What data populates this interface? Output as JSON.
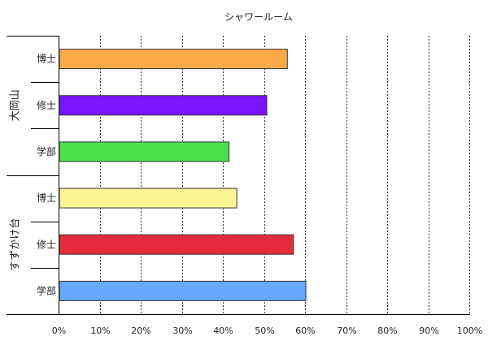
{
  "chart_data": {
    "type": "bar",
    "orientation": "horizontal",
    "title": "シャワールーム",
    "xlim": [
      0,
      100
    ],
    "x_ticks": [
      "0%",
      "10%",
      "20%",
      "30%",
      "40%",
      "50%",
      "60%",
      "70%",
      "80%",
      "90%",
      "100%"
    ],
    "x_grid": true,
    "groups": [
      {
        "name": "大岡山",
        "categories": [
          {
            "label": "博士",
            "value": 55.5,
            "color": "#FCA94A"
          },
          {
            "label": "修士",
            "value": 50.5,
            "color": "#7A14FA"
          },
          {
            "label": "学部",
            "value": 41.3,
            "color": "#4DE04D"
          }
        ]
      },
      {
        "name": "すずかけ台",
        "categories": [
          {
            "label": "博士",
            "value": 43.2,
            "color": "#FDF595"
          },
          {
            "label": "修士",
            "value": 57.0,
            "color": "#E42B3B"
          },
          {
            "label": "学部",
            "value": 60.0,
            "color": "#66A8FA"
          }
        ]
      }
    ]
  }
}
